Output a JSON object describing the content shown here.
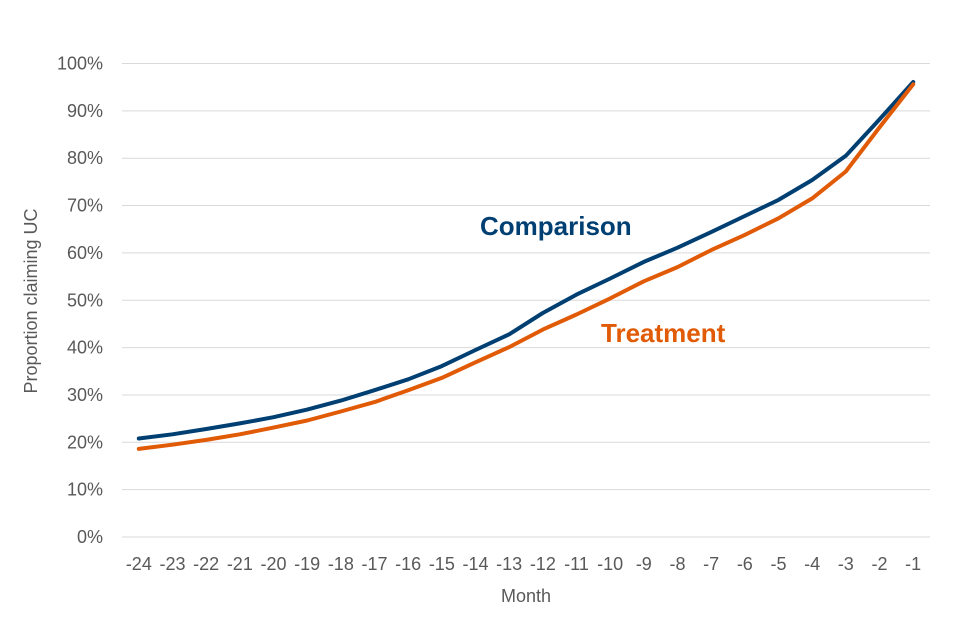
{
  "chart_data": {
    "type": "line",
    "xlabel": "Month",
    "ylabel": "Proportion claiming UC",
    "x": [
      "-24",
      "-23",
      "-22",
      "-21",
      "-20",
      "-19",
      "-18",
      "-17",
      "-16",
      "-15",
      "-14",
      "-13",
      "-12",
      "-11",
      "-10",
      "-9",
      "-8",
      "-7",
      "-6",
      "-5",
      "-4",
      "-3",
      "-2",
      "-1"
    ],
    "ylim": [
      0,
      100
    ],
    "yticks": [
      "0%",
      "10%",
      "20%",
      "30%",
      "40%",
      "50%",
      "60%",
      "70%",
      "80%",
      "90%",
      "100%"
    ],
    "grid": true,
    "legend": "inline labels",
    "series": [
      {
        "name": "Comparison",
        "color": "#003f72",
        "values": [
          20.8,
          21.7,
          22.8,
          24.0,
          25.3,
          26.9,
          28.8,
          31.0,
          33.3,
          36.1,
          39.5,
          42.8,
          47.3,
          51.2,
          54.6,
          58.1,
          61.1,
          64.4,
          67.8,
          71.2,
          75.4,
          80.5,
          88.2,
          96.1
        ]
      },
      {
        "name": "Treatment",
        "color": "#e15a06",
        "values": [
          18.6,
          19.5,
          20.5,
          21.7,
          23.1,
          24.6,
          26.5,
          28.5,
          31.0,
          33.6,
          36.9,
          40.1,
          43.8,
          47.0,
          50.4,
          54.0,
          57.0,
          60.6,
          63.8,
          67.3,
          71.5,
          77.2,
          86.5,
          95.6
        ]
      }
    ]
  }
}
